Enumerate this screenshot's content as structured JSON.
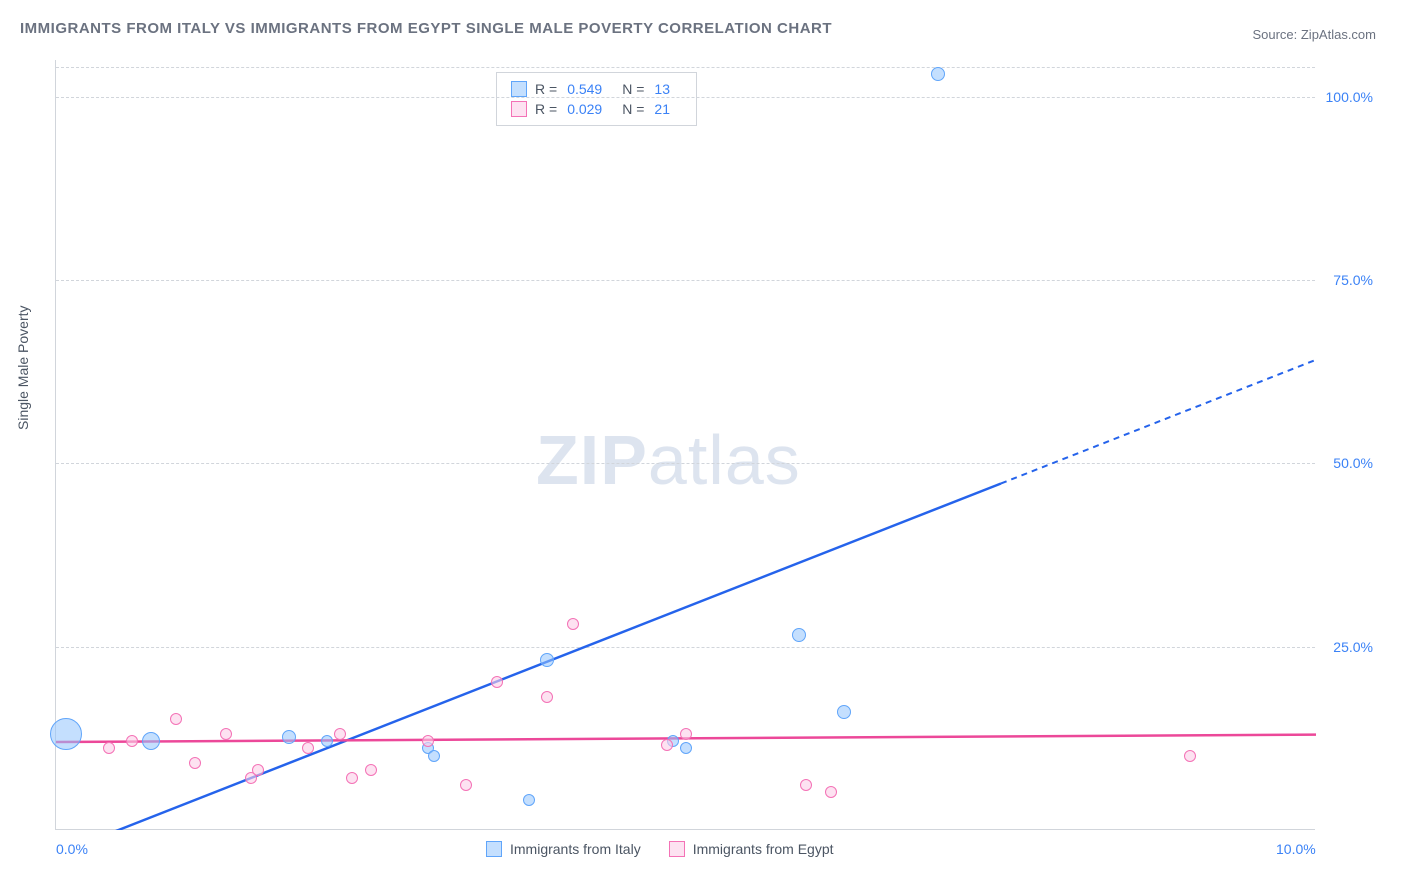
{
  "title": "IMMIGRANTS FROM ITALY VS IMMIGRANTS FROM EGYPT SINGLE MALE POVERTY CORRELATION CHART",
  "source_label": "Source: ",
  "source_name": "ZipAtlas.com",
  "y_axis_label": "Single Male Poverty",
  "watermark": "ZIPatlas",
  "chart": {
    "type": "scatter",
    "xlim": [
      0,
      10
    ],
    "ylim": [
      0,
      105
    ],
    "x_ticks": [
      {
        "v": 0,
        "label": "0.0%"
      },
      {
        "v": 10,
        "label": "10.0%"
      }
    ],
    "y_ticks": [
      {
        "v": 25,
        "label": "25.0%"
      },
      {
        "v": 50,
        "label": "50.0%"
      },
      {
        "v": 75,
        "label": "75.0%"
      },
      {
        "v": 100,
        "label": "100.0%"
      }
    ],
    "grid_color": "#d1d5db",
    "background_color": "#ffffff",
    "series": [
      {
        "name": "Immigrants from Italy",
        "color_fill": "rgba(147,197,253,0.55)",
        "color_stroke": "#60a5fa",
        "trend_color": "#2563eb",
        "trend": {
          "x1": 0.2,
          "y1": -2,
          "x2": 8.5,
          "y2": 54,
          "dash_after_x": 7.5
        },
        "R": "0.549",
        "N": "13",
        "points": [
          {
            "x": 0.08,
            "y": 13,
            "r": 16
          },
          {
            "x": 0.75,
            "y": 12,
            "r": 9
          },
          {
            "x": 1.85,
            "y": 12.5,
            "r": 7
          },
          {
            "x": 2.15,
            "y": 12,
            "r": 6
          },
          {
            "x": 2.95,
            "y": 11,
            "r": 6
          },
          {
            "x": 3.0,
            "y": 10,
            "r": 6
          },
          {
            "x": 3.75,
            "y": 4,
            "r": 6
          },
          {
            "x": 3.9,
            "y": 23,
            "r": 7
          },
          {
            "x": 4.9,
            "y": 12,
            "r": 6
          },
          {
            "x": 5.0,
            "y": 11,
            "r": 6
          },
          {
            "x": 5.9,
            "y": 26.5,
            "r": 7
          },
          {
            "x": 6.25,
            "y": 16,
            "r": 7
          },
          {
            "x": 7.0,
            "y": 103,
            "r": 7
          }
        ]
      },
      {
        "name": "Immigrants from Egypt",
        "color_fill": "rgba(251,207,232,0.6)",
        "color_stroke": "#f472b6",
        "trend_color": "#ec4899",
        "trend": {
          "x1": 0,
          "y1": 12,
          "x2": 10,
          "y2": 13,
          "dash_after_x": null
        },
        "R": "0.029",
        "N": "21",
        "points": [
          {
            "x": 0.42,
            "y": 11,
            "r": 6
          },
          {
            "x": 0.6,
            "y": 12,
            "r": 6
          },
          {
            "x": 0.95,
            "y": 15,
            "r": 6
          },
          {
            "x": 1.1,
            "y": 9,
            "r": 6
          },
          {
            "x": 1.35,
            "y": 13,
            "r": 6
          },
          {
            "x": 1.55,
            "y": 7,
            "r": 6
          },
          {
            "x": 1.6,
            "y": 8,
            "r": 6
          },
          {
            "x": 2.0,
            "y": 11,
            "r": 6
          },
          {
            "x": 2.25,
            "y": 13,
            "r": 6
          },
          {
            "x": 2.35,
            "y": 7,
            "r": 6
          },
          {
            "x": 2.5,
            "y": 8,
            "r": 6
          },
          {
            "x": 3.25,
            "y": 6,
            "r": 6
          },
          {
            "x": 3.5,
            "y": 20,
            "r": 6
          },
          {
            "x": 3.9,
            "y": 18,
            "r": 6
          },
          {
            "x": 4.1,
            "y": 28,
            "r": 6
          },
          {
            "x": 4.85,
            "y": 11.5,
            "r": 6
          },
          {
            "x": 5.0,
            "y": 13,
            "r": 6
          },
          {
            "x": 5.95,
            "y": 6,
            "r": 6
          },
          {
            "x": 6.15,
            "y": 5,
            "r": 6
          },
          {
            "x": 9.0,
            "y": 10,
            "r": 6
          },
          {
            "x": 2.95,
            "y": 12,
            "r": 6
          }
        ]
      }
    ]
  },
  "legend_bottom": [
    {
      "label": "Immigrants from Italy",
      "fill": "rgba(147,197,253,0.55)",
      "stroke": "#60a5fa"
    },
    {
      "label": "Immigrants from Egypt",
      "fill": "rgba(251,207,232,0.6)",
      "stroke": "#f472b6"
    }
  ]
}
